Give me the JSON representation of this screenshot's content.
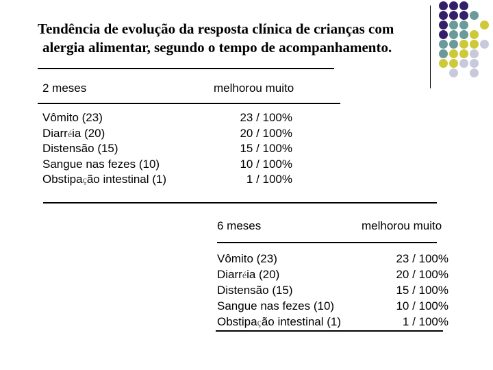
{
  "slide": {
    "title": {
      "line1": "Tendência de evolução da resposta clínica de crianças com",
      "line2": "alergia alimentar, segundo o tempo de acompanhamento."
    }
  },
  "tables": [
    {
      "period": "2 meses",
      "outcome": "melhorou muito",
      "rows": [
        {
          "label": "Vômito (23)",
          "value": "23 / 100%"
        },
        {
          "label": "Diarréia (20)",
          "value": "20 / 100%"
        },
        {
          "label": "Distensão (15)",
          "value": "15 / 100%"
        },
        {
          "label": "Sangue nas fezes (10)",
          "value": "10 / 100%"
        },
        {
          "label": "Obstipação intestinal (1)",
          "value": "1 / 100%"
        }
      ]
    },
    {
      "period": "6 meses",
      "outcome": "melhorou muito",
      "rows": [
        {
          "label": "Vômito (23)",
          "value": "23 / 100%"
        },
        {
          "label": "Diarréia (20)",
          "value": "20 / 100%"
        },
        {
          "label": "Distensão (15)",
          "value": "15 / 100%"
        },
        {
          "label": "Sangue nas fezes (10)",
          "value": "10 / 100%"
        },
        {
          "label": "Obstipação intestinal (1)",
          "value": "1 / 100%"
        }
      ]
    }
  ],
  "decor": {
    "accent_colors": {
      "purple": "#342069",
      "teal": "#6a9a99",
      "yellow": "#cdc939",
      "lavender": "#c9c9dc"
    },
    "dot_grid": [
      [
        "purple",
        "purple",
        "purple",
        null,
        null
      ],
      [
        "purple",
        "purple",
        "purple",
        "teal",
        null
      ],
      [
        "purple",
        "teal",
        "teal",
        null,
        "yellow"
      ],
      [
        "purple",
        "teal",
        "teal",
        "yellow",
        null
      ],
      [
        "teal",
        "teal",
        "yellow",
        "yellow",
        "lavender"
      ],
      [
        "teal",
        "yellow",
        "yellow",
        "lavender",
        null
      ],
      [
        "yellow",
        "yellow",
        "lavender",
        "lavender",
        null
      ],
      [
        null,
        "lavender",
        null,
        "lavender",
        null
      ]
    ]
  }
}
